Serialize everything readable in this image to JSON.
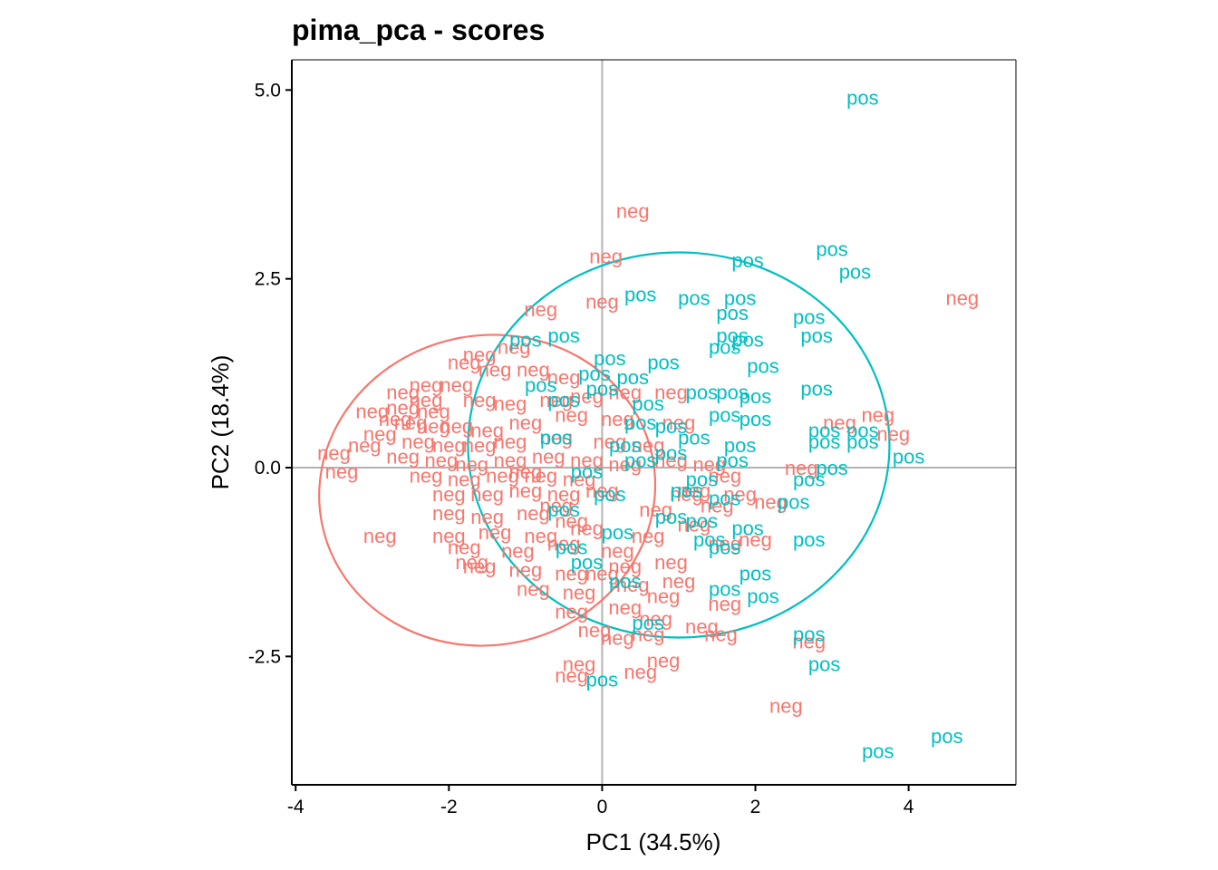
{
  "chart_data": {
    "type": "scatter",
    "title": "pima_pca - scores",
    "xlabel": "PC1 (34.5%)",
    "ylabel": "PC2 (18.4%)",
    "xlim": [
      -4.05,
      5.4
    ],
    "ylim": [
      -4.2,
      5.4
    ],
    "xticks": [
      -4,
      -2,
      0,
      2,
      4
    ],
    "xtick_labels": [
      "-4",
      "-2",
      "0",
      "2",
      "4"
    ],
    "yticks": [
      5.0,
      2.5,
      0.0,
      -2.5
    ],
    "ytick_labels": [
      "5.0",
      "2.5",
      "0.0",
      "-2.5"
    ],
    "grid": false,
    "reference_lines": {
      "x": 0,
      "y": 0,
      "color": "#b3b3b3"
    },
    "legend": "none",
    "marker": "text",
    "series": [
      {
        "name": "neg",
        "label": "neg",
        "color": "#F8766D",
        "ellipse": {
          "cx": -1.5,
          "cy": -0.3,
          "rx": 2.2,
          "ry": 2.05,
          "angle": -12
        },
        "points": [
          [
            0.4,
            3.4
          ],
          [
            0.05,
            2.8
          ],
          [
            0.0,
            2.2
          ],
          [
            -0.8,
            2.1
          ],
          [
            -1.15,
            1.6
          ],
          [
            -1.6,
            1.5
          ],
          [
            -1.8,
            1.4
          ],
          [
            -1.4,
            1.3
          ],
          [
            -0.9,
            1.3
          ],
          [
            -0.5,
            1.2
          ],
          [
            -2.3,
            1.1
          ],
          [
            -1.9,
            1.1
          ],
          [
            -2.6,
            1.0
          ],
          [
            -2.3,
            0.9
          ],
          [
            -1.6,
            0.9
          ],
          [
            -1.2,
            0.85
          ],
          [
            -0.6,
            0.9
          ],
          [
            -0.2,
            0.95
          ],
          [
            0.3,
            1.0
          ],
          [
            0.9,
            1.0
          ],
          [
            -3.0,
            0.75
          ],
          [
            -2.7,
            0.65
          ],
          [
            -2.5,
            0.6
          ],
          [
            -2.2,
            0.55
          ],
          [
            -1.9,
            0.55
          ],
          [
            -1.5,
            0.5
          ],
          [
            -1.0,
            0.6
          ],
          [
            -0.4,
            0.7
          ],
          [
            0.2,
            0.65
          ],
          [
            1.0,
            0.6
          ],
          [
            -2.9,
            0.45
          ],
          [
            -2.4,
            0.35
          ],
          [
            -2.0,
            0.3
          ],
          [
            -1.6,
            0.3
          ],
          [
            -1.2,
            0.35
          ],
          [
            -0.6,
            0.4
          ],
          [
            0.1,
            0.35
          ],
          [
            0.6,
            0.3
          ],
          [
            -3.5,
            0.2
          ],
          [
            -3.1,
            0.3
          ],
          [
            -2.6,
            0.15
          ],
          [
            -2.1,
            0.1
          ],
          [
            -1.7,
            0.05
          ],
          [
            -1.2,
            0.1
          ],
          [
            -0.7,
            0.15
          ],
          [
            -0.2,
            0.1
          ],
          [
            0.3,
            0.05
          ],
          [
            0.9,
            0.1
          ],
          [
            1.4,
            0.05
          ],
          [
            -3.4,
            -0.05
          ],
          [
            -2.3,
            -0.1
          ],
          [
            -1.8,
            -0.15
          ],
          [
            -1.3,
            -0.1
          ],
          [
            -0.8,
            -0.1
          ],
          [
            -0.3,
            -0.15
          ],
          [
            1.6,
            -0.1
          ],
          [
            -2.0,
            -0.35
          ],
          [
            -1.5,
            -0.35
          ],
          [
            -1.0,
            -0.3
          ],
          [
            -0.5,
            -0.35
          ],
          [
            0.0,
            -0.3
          ],
          [
            1.1,
            -0.35
          ],
          [
            1.8,
            -0.35
          ],
          [
            2.2,
            -0.45
          ],
          [
            -2.0,
            -0.6
          ],
          [
            -1.5,
            -0.65
          ],
          [
            -0.9,
            -0.6
          ],
          [
            -0.4,
            -0.7
          ],
          [
            0.7,
            -0.55
          ],
          [
            1.5,
            -0.5
          ],
          [
            -2.9,
            -0.9
          ],
          [
            -2.0,
            -0.9
          ],
          [
            -1.4,
            -0.85
          ],
          [
            -0.8,
            -0.9
          ],
          [
            -0.2,
            -0.8
          ],
          [
            0.6,
            -0.9
          ],
          [
            1.2,
            -0.75
          ],
          [
            -1.8,
            -1.05
          ],
          [
            -1.1,
            -1.1
          ],
          [
            -0.5,
            -1.0
          ],
          [
            0.2,
            -1.1
          ],
          [
            1.6,
            -1.0
          ],
          [
            2.0,
            -0.95
          ],
          [
            -1.6,
            -1.3
          ],
          [
            -1.0,
            -1.35
          ],
          [
            -0.4,
            -1.4
          ],
          [
            0.3,
            -1.3
          ],
          [
            0.9,
            -1.25
          ],
          [
            -0.9,
            -1.6
          ],
          [
            -0.3,
            -1.65
          ],
          [
            0.4,
            -1.55
          ],
          [
            0.8,
            -1.7
          ],
          [
            -0.4,
            -1.9
          ],
          [
            0.3,
            -1.85
          ],
          [
            1.6,
            -1.8
          ],
          [
            0.7,
            -2.0
          ],
          [
            1.3,
            -2.1
          ],
          [
            -0.1,
            -2.15
          ],
          [
            0.6,
            -2.2
          ],
          [
            1.55,
            -2.2
          ],
          [
            0.2,
            -2.25
          ],
          [
            2.7,
            -2.3
          ],
          [
            -0.3,
            -2.6
          ],
          [
            0.8,
            -2.55
          ],
          [
            0.5,
            -2.7
          ],
          [
            -0.4,
            -2.75
          ],
          [
            2.4,
            -3.15
          ],
          [
            4.7,
            2.25
          ],
          [
            3.6,
            0.7
          ],
          [
            3.1,
            0.6
          ],
          [
            3.8,
            0.45
          ],
          [
            2.6,
            0.0
          ],
          [
            -1.0,
            -0.05
          ],
          [
            -0.6,
            -0.5
          ],
          [
            -1.7,
            -1.25
          ],
          [
            0.0,
            -1.4
          ],
          [
            1.0,
            -1.5
          ],
          [
            1.2,
            -0.3
          ],
          [
            -2.6,
            0.8
          ],
          [
            -2.2,
            0.75
          ]
        ]
      },
      {
        "name": "pos",
        "label": "pos",
        "color": "#00BFC4",
        "ellipse": {
          "cx": 1.0,
          "cy": 0.3,
          "rx": 2.75,
          "ry": 2.55,
          "angle": 0
        },
        "points": [
          [
            3.4,
            4.9
          ],
          [
            3.0,
            2.9
          ],
          [
            1.9,
            2.75
          ],
          [
            3.3,
            2.6
          ],
          [
            0.5,
            2.3
          ],
          [
            1.2,
            2.25
          ],
          [
            1.8,
            2.25
          ],
          [
            2.7,
            2.0
          ],
          [
            1.7,
            2.05
          ],
          [
            2.8,
            1.75
          ],
          [
            1.7,
            1.75
          ],
          [
            1.9,
            1.7
          ],
          [
            -1.0,
            1.7
          ],
          [
            -0.5,
            1.75
          ],
          [
            1.6,
            1.6
          ],
          [
            0.1,
            1.45
          ],
          [
            0.8,
            1.4
          ],
          [
            2.1,
            1.35
          ],
          [
            -0.1,
            1.25
          ],
          [
            0.4,
            1.2
          ],
          [
            2.8,
            1.05
          ],
          [
            1.3,
            1.0
          ],
          [
            1.7,
            1.0
          ],
          [
            -0.8,
            1.1
          ],
          [
            0.0,
            1.05
          ],
          [
            2.0,
            0.95
          ],
          [
            -0.5,
            0.9
          ],
          [
            0.6,
            0.85
          ],
          [
            1.6,
            0.7
          ],
          [
            2.0,
            0.65
          ],
          [
            0.5,
            0.6
          ],
          [
            0.9,
            0.55
          ],
          [
            2.9,
            0.5
          ],
          [
            3.4,
            0.5
          ],
          [
            1.2,
            0.4
          ],
          [
            2.9,
            0.35
          ],
          [
            3.4,
            0.35
          ],
          [
            -0.6,
            0.4
          ],
          [
            0.3,
            0.3
          ],
          [
            1.8,
            0.3
          ],
          [
            4.0,
            0.15
          ],
          [
            0.5,
            0.1
          ],
          [
            1.7,
            0.1
          ],
          [
            3.0,
            0.0
          ],
          [
            -0.2,
            -0.05
          ],
          [
            1.3,
            -0.15
          ],
          [
            2.7,
            -0.15
          ],
          [
            0.1,
            -0.35
          ],
          [
            1.6,
            -0.4
          ],
          [
            2.5,
            -0.45
          ],
          [
            -0.5,
            -0.55
          ],
          [
            0.9,
            -0.65
          ],
          [
            1.3,
            -0.7
          ],
          [
            1.9,
            -0.8
          ],
          [
            1.4,
            -0.95
          ],
          [
            2.7,
            -0.95
          ],
          [
            0.2,
            -0.85
          ],
          [
            -0.4,
            -1.05
          ],
          [
            1.6,
            -1.05
          ],
          [
            2.0,
            -1.4
          ],
          [
            1.6,
            -1.6
          ],
          [
            0.3,
            -1.5
          ],
          [
            -0.2,
            -1.25
          ],
          [
            2.1,
            -1.7
          ],
          [
            0.6,
            -2.05
          ],
          [
            2.7,
            -2.2
          ],
          [
            2.9,
            -2.6
          ],
          [
            0.0,
            -2.8
          ],
          [
            3.6,
            -3.75
          ],
          [
            4.5,
            -3.55
          ],
          [
            0.9,
            0.2
          ],
          [
            1.1,
            -0.3
          ]
        ]
      }
    ]
  }
}
